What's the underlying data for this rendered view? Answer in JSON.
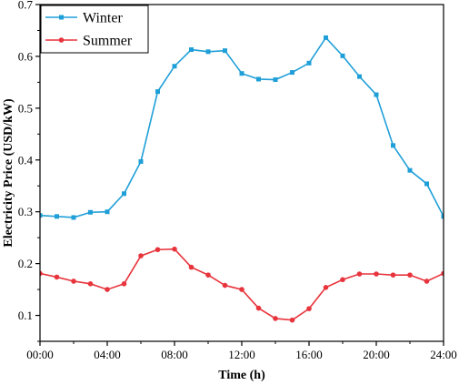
{
  "chart_data": {
    "type": "line",
    "title": "",
    "xlabel": "Time (h)",
    "ylabel": "Electricity Price (USD/kW)",
    "x": [
      0,
      1,
      2,
      3,
      4,
      5,
      6,
      7,
      8,
      9,
      10,
      11,
      12,
      13,
      14,
      15,
      16,
      17,
      18,
      19,
      20,
      21,
      22,
      23,
      24
    ],
    "xlim": [
      0,
      24
    ],
    "ylim": [
      0.05,
      0.7
    ],
    "x_ticks": [
      {
        "value": 0,
        "label": "00:00"
      },
      {
        "value": 4,
        "label": "04:00"
      },
      {
        "value": 8,
        "label": "08:00"
      },
      {
        "value": 12,
        "label": "12:00"
      },
      {
        "value": 16,
        "label": "16:00"
      },
      {
        "value": 20,
        "label": "20:00"
      },
      {
        "value": 24,
        "label": "24:00"
      }
    ],
    "y_ticks": [
      {
        "value": 0.1,
        "label": "0.1"
      },
      {
        "value": 0.2,
        "label": "0.2"
      },
      {
        "value": 0.3,
        "label": "0.3"
      },
      {
        "value": 0.4,
        "label": "0.4"
      },
      {
        "value": 0.5,
        "label": "0.5"
      },
      {
        "value": 0.6,
        "label": "0.6"
      },
      {
        "value": 0.7,
        "label": "0.7"
      }
    ],
    "grid": false,
    "legend_position": "top-left",
    "series": [
      {
        "name": "Winter",
        "color": "#1f9fd8",
        "marker": "square",
        "values": [
          0.293,
          0.291,
          0.289,
          0.299,
          0.3,
          0.335,
          0.397,
          0.532,
          0.581,
          0.613,
          0.609,
          0.611,
          0.567,
          0.556,
          0.555,
          0.569,
          0.587,
          0.636,
          0.601,
          0.561,
          0.526,
          0.428,
          0.38,
          0.354,
          0.291
        ]
      },
      {
        "name": "Summer",
        "color": "#e8343c",
        "marker": "circle",
        "values": [
          0.181,
          0.174,
          0.166,
          0.161,
          0.15,
          0.161,
          0.215,
          0.227,
          0.228,
          0.193,
          0.178,
          0.158,
          0.15,
          0.114,
          0.094,
          0.091,
          0.113,
          0.154,
          0.169,
          0.18,
          0.18,
          0.178,
          0.178,
          0.166,
          0.181
        ]
      }
    ]
  }
}
